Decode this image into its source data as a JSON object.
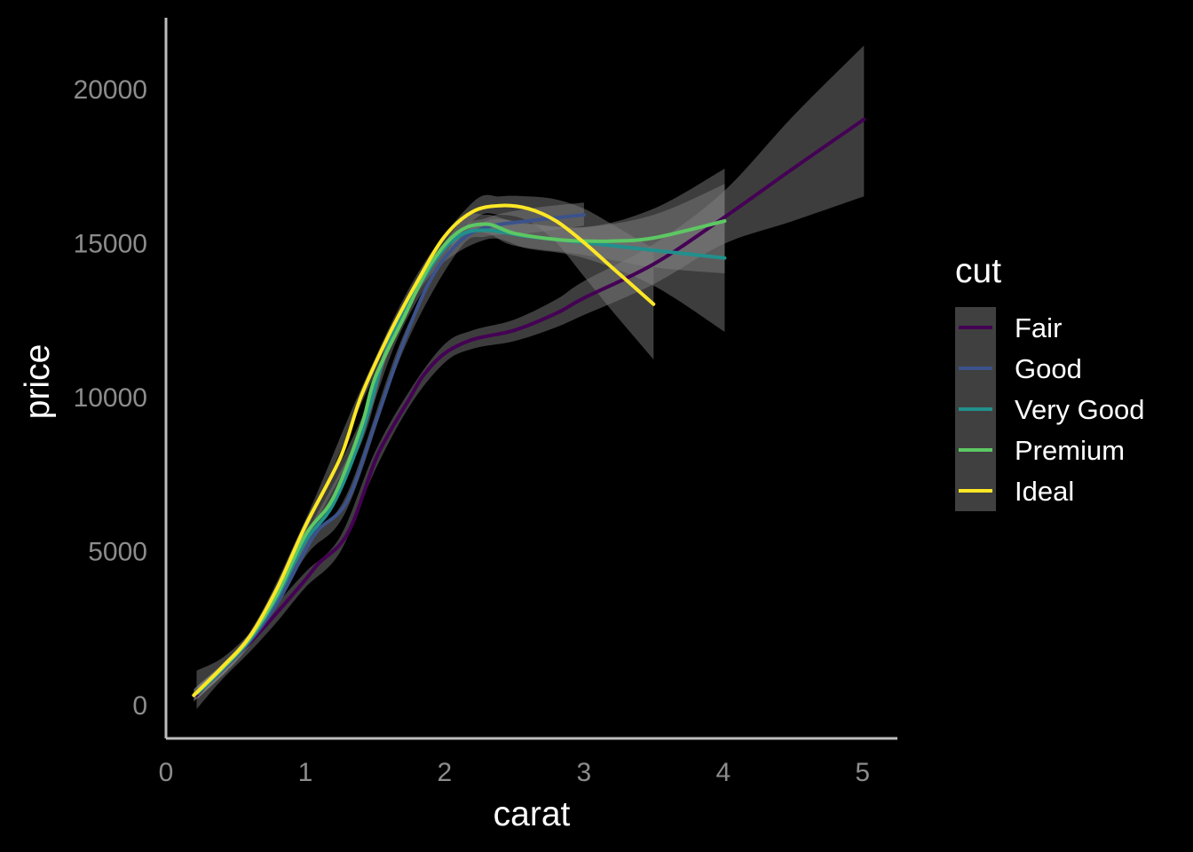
{
  "chart_data": {
    "type": "line",
    "title": "",
    "xlabel": "carat",
    "ylabel": "price",
    "xlim": [
      0,
      5.25
    ],
    "ylim": [
      -1100,
      22300
    ],
    "x_ticks": [
      0,
      1,
      2,
      3,
      4,
      5
    ],
    "y_ticks": [
      0,
      5000,
      10000,
      15000,
      20000
    ],
    "grid": false,
    "legend_title": "cut",
    "legend_position": "right",
    "band_color": "#7f7f7f",
    "series": [
      {
        "name": "Fair",
        "color": "#440154",
        "points": [
          [
            0.22,
            300
          ],
          [
            0.4,
            1150
          ],
          [
            0.6,
            2000
          ],
          [
            0.8,
            3000
          ],
          [
            1.0,
            4050
          ],
          [
            1.1,
            4600
          ],
          [
            1.25,
            5200
          ],
          [
            1.35,
            6000
          ],
          [
            1.5,
            7900
          ],
          [
            1.6,
            8800
          ],
          [
            1.75,
            9950
          ],
          [
            1.85,
            10700
          ],
          [
            2.0,
            11400
          ],
          [
            2.2,
            11850
          ],
          [
            2.5,
            12150
          ],
          [
            2.8,
            12700
          ],
          [
            3.0,
            13200
          ],
          [
            3.5,
            14300
          ],
          [
            4.0,
            15800
          ],
          [
            4.5,
            17400
          ],
          [
            5.01,
            19000
          ]
        ],
        "band": [
          [
            0.22,
            -150,
            1100
          ],
          [
            0.4,
            800,
            1500
          ],
          [
            0.6,
            1700,
            2300
          ],
          [
            0.8,
            2700,
            3300
          ],
          [
            1.0,
            3800,
            4300
          ],
          [
            1.25,
            4950,
            5450
          ],
          [
            1.5,
            7600,
            8200
          ],
          [
            1.75,
            9700,
            10200
          ],
          [
            2.0,
            11100,
            11700
          ],
          [
            2.2,
            11550,
            12150
          ],
          [
            2.5,
            11800,
            12500
          ],
          [
            2.8,
            12250,
            13150
          ],
          [
            3.0,
            12650,
            13750
          ],
          [
            3.5,
            13650,
            14950
          ],
          [
            4.0,
            14950,
            16650
          ],
          [
            4.5,
            15700,
            19100
          ],
          [
            5.01,
            16500,
            21400
          ]
        ]
      },
      {
        "name": "Good",
        "color": "#3b528b",
        "points": [
          [
            0.23,
            380
          ],
          [
            0.4,
            1100
          ],
          [
            0.6,
            2050
          ],
          [
            0.8,
            3300
          ],
          [
            1.0,
            5000
          ],
          [
            1.1,
            5700
          ],
          [
            1.3,
            6600
          ],
          [
            1.5,
            9100
          ],
          [
            1.7,
            11700
          ],
          [
            1.9,
            13800
          ],
          [
            2.1,
            15000
          ],
          [
            2.3,
            15500
          ],
          [
            2.6,
            15700
          ],
          [
            3.0,
            15900
          ]
        ],
        "band": [
          [
            0.23,
            200,
            600
          ],
          [
            0.6,
            1900,
            2200
          ],
          [
            1.0,
            4800,
            5200
          ],
          [
            1.3,
            6350,
            6850
          ],
          [
            1.7,
            11450,
            11950
          ],
          [
            2.1,
            14750,
            15250
          ],
          [
            2.3,
            15200,
            15800
          ],
          [
            2.6,
            15300,
            16100
          ],
          [
            3.0,
            15550,
            16300
          ]
        ]
      },
      {
        "name": "Very Good",
        "color": "#21908c",
        "points": [
          [
            0.23,
            380
          ],
          [
            0.4,
            1150
          ],
          [
            0.6,
            2100
          ],
          [
            0.8,
            3500
          ],
          [
            1.0,
            5300
          ],
          [
            1.2,
            6500
          ],
          [
            1.4,
            8700
          ],
          [
            1.6,
            11700
          ],
          [
            1.9,
            14200
          ],
          [
            2.1,
            15200
          ],
          [
            2.3,
            15400
          ],
          [
            2.6,
            15200
          ],
          [
            3.0,
            15000
          ],
          [
            3.5,
            14750
          ],
          [
            4.01,
            14500
          ]
        ],
        "band": [
          [
            0.23,
            200,
            600
          ],
          [
            0.6,
            1950,
            2250
          ],
          [
            1.0,
            5100,
            5500
          ],
          [
            1.4,
            8450,
            8950
          ],
          [
            1.6,
            11450,
            11950
          ],
          [
            1.9,
            13950,
            14450
          ],
          [
            2.3,
            15100,
            15700
          ],
          [
            2.6,
            14800,
            15600
          ],
          [
            3.0,
            14500,
            15500
          ],
          [
            3.5,
            13600,
            15900
          ],
          [
            4.01,
            12100,
            16900
          ]
        ]
      },
      {
        "name": "Premium",
        "color": "#5dc863",
        "points": [
          [
            0.2,
            300
          ],
          [
            0.4,
            1150
          ],
          [
            0.6,
            2150
          ],
          [
            0.8,
            3600
          ],
          [
            1.0,
            5500
          ],
          [
            1.2,
            6700
          ],
          [
            1.4,
            9000
          ],
          [
            1.5,
            10600
          ],
          [
            1.7,
            12500
          ],
          [
            1.9,
            14300
          ],
          [
            2.1,
            15350
          ],
          [
            2.3,
            15600
          ],
          [
            2.5,
            15300
          ],
          [
            2.8,
            15100
          ],
          [
            3.0,
            15050
          ],
          [
            3.2,
            15050
          ],
          [
            3.5,
            15150
          ],
          [
            4.01,
            15700
          ]
        ],
        "band": [
          [
            0.2,
            100,
            500
          ],
          [
            0.6,
            2000,
            2300
          ],
          [
            1.0,
            5300,
            5700
          ],
          [
            1.4,
            8750,
            9250
          ],
          [
            1.7,
            12250,
            12750
          ],
          [
            2.1,
            15100,
            15600
          ],
          [
            2.3,
            15300,
            15900
          ],
          [
            2.5,
            14900,
            15700
          ],
          [
            3.0,
            14600,
            15500
          ],
          [
            3.5,
            14200,
            16100
          ],
          [
            4.01,
            14000,
            17400
          ]
        ]
      },
      {
        "name": "Ideal",
        "color": "#fde725",
        "points": [
          [
            0.2,
            300
          ],
          [
            0.4,
            1200
          ],
          [
            0.6,
            2200
          ],
          [
            0.8,
            3800
          ],
          [
            1.0,
            5800
          ],
          [
            1.25,
            8000
          ],
          [
            1.4,
            10000
          ],
          [
            1.6,
            12000
          ],
          [
            1.8,
            13700
          ],
          [
            2.0,
            15200
          ],
          [
            2.2,
            16000
          ],
          [
            2.4,
            16200
          ],
          [
            2.6,
            16100
          ],
          [
            2.8,
            15700
          ],
          [
            3.0,
            15000
          ],
          [
            3.2,
            14200
          ],
          [
            3.5,
            13000
          ]
        ],
        "band": [
          [
            0.2,
            100,
            500
          ],
          [
            0.6,
            2050,
            2350
          ],
          [
            1.0,
            5600,
            6000
          ],
          [
            1.4,
            9750,
            10250
          ],
          [
            1.8,
            13450,
            13950
          ],
          [
            2.2,
            15700,
            16300
          ],
          [
            2.4,
            15900,
            16500
          ],
          [
            2.6,
            15700,
            16500
          ],
          [
            2.8,
            15000,
            16400
          ],
          [
            3.0,
            13900,
            16100
          ],
          [
            3.2,
            12800,
            15600
          ],
          [
            3.5,
            11200,
            14800
          ]
        ]
      }
    ]
  }
}
